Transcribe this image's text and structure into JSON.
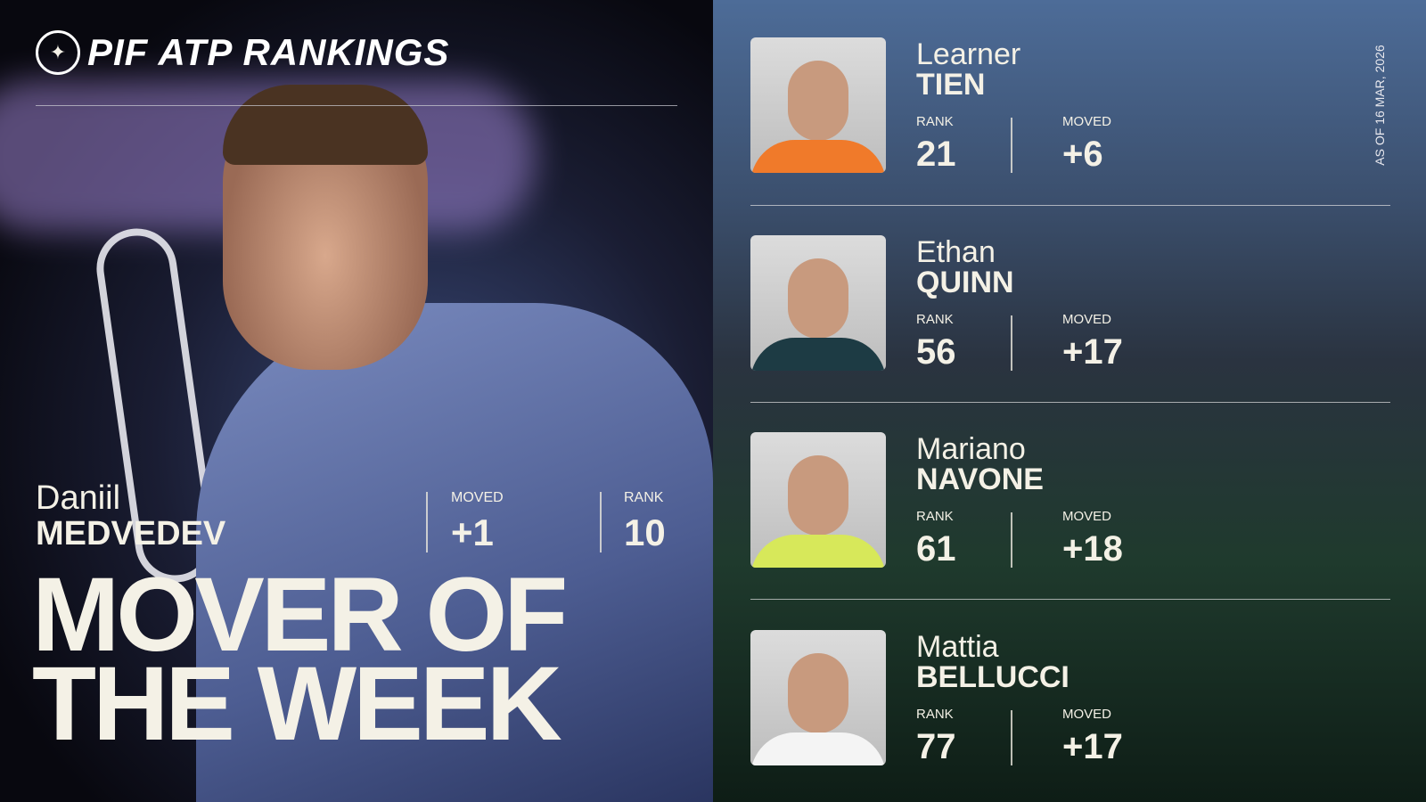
{
  "brand": {
    "logo_text": "PIF ATP RANKINGS",
    "title": "PIF ATP RANKINGS"
  },
  "featured": {
    "first_name": "Daniil",
    "last_name": "MEDVEDEV",
    "moved_label": "MOVED",
    "moved": "+1",
    "rank_label": "RANK",
    "rank": "10"
  },
  "headline": {
    "line1": "MOVER OF",
    "line2": "THE WEEK"
  },
  "as_of": "AS OF 16 MAR, 2026",
  "players": [
    {
      "first_name": "Learner",
      "last_name": "TIEN",
      "rank_label": "RANK",
      "rank": "21",
      "moved_label": "MOVED",
      "moved": "+6",
      "shirt": "#f07a2a"
    },
    {
      "first_name": "Ethan",
      "last_name": "QUINN",
      "rank_label": "RANK",
      "rank": "56",
      "moved_label": "MOVED",
      "moved": "+17",
      "shirt": "#1d3b44"
    },
    {
      "first_name": "Mariano",
      "last_name": "NAVONE",
      "rank_label": "RANK",
      "rank": "61",
      "moved_label": "MOVED",
      "moved": "+18",
      "shirt": "#d7e85a"
    },
    {
      "first_name": "Mattia",
      "last_name": "BELLUCCI",
      "rank_label": "RANK",
      "rank": "77",
      "moved_label": "MOVED",
      "moved": "+17",
      "shirt": "#f4f4f4"
    }
  ]
}
